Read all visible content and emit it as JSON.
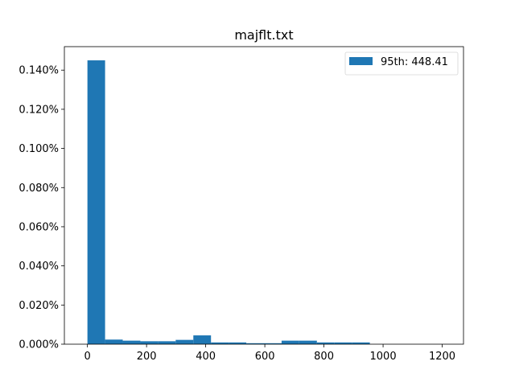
{
  "chart_data": {
    "type": "bar",
    "title": "majflt.txt",
    "xlabel": "",
    "ylabel": "",
    "bin_edges": [
      0,
      59.7,
      119.4,
      179.1,
      238.8,
      298.5,
      358.2,
      417.9,
      477.6,
      537.3,
      597.0,
      656.7,
      716.4,
      776.1,
      835.8,
      895.5,
      955.2,
      1014.9,
      1074.6,
      1134.3,
      1194.0
    ],
    "values": [
      0.00145,
      2.35e-05,
      1.8e-05,
      1.5e-05,
      1.5e-05,
      2.2e-05,
      4.5e-05,
      9e-06,
      9e-06,
      5e-06,
      5e-06,
      1.8e-05,
      1.8e-05,
      9e-06,
      9e-06,
      9e-06,
      0,
      0,
      0,
      0
    ],
    "series": [
      {
        "name": "95th: 448.41",
        "color": "#1f77b4"
      }
    ],
    "xlim": [
      -78,
      1272
    ],
    "ylim": [
      0,
      0.00152
    ],
    "x_ticks": [
      0,
      200,
      400,
      600,
      800,
      1000,
      1200
    ],
    "x_tick_labels": [
      "0",
      "200",
      "400",
      "600",
      "800",
      "1000",
      "1200"
    ],
    "y_ticks": [
      0,
      0.0002,
      0.0004,
      0.0006,
      0.0008,
      0.001,
      0.0012,
      0.0014
    ],
    "y_tick_labels": [
      "0.000%",
      "0.020%",
      "0.040%",
      "0.060%",
      "0.080%",
      "0.100%",
      "0.120%",
      "0.140%"
    ],
    "grid": false,
    "legend_position": "upper right"
  }
}
